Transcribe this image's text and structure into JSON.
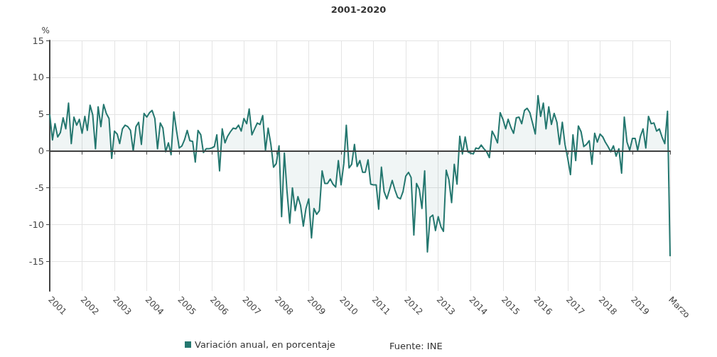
{
  "chart_data": {
    "type": "area",
    "title": "2001-2020",
    "ylabel": "%",
    "annotations": [
      "Fuente: INE"
    ],
    "x": [
      "2001-01",
      "2001-02",
      "2001-03",
      "2001-04",
      "2001-05",
      "2001-06",
      "2001-07",
      "2001-08",
      "2001-09",
      "2001-10",
      "2001-11",
      "2001-12",
      "2002-01",
      "2002-02",
      "2002-03",
      "2002-04",
      "2002-05",
      "2002-06",
      "2002-07",
      "2002-08",
      "2002-09",
      "2002-10",
      "2002-11",
      "2002-12",
      "2003-01",
      "2003-02",
      "2003-03",
      "2003-04",
      "2003-05",
      "2003-06",
      "2003-07",
      "2003-08",
      "2003-09",
      "2003-10",
      "2003-11",
      "2003-12",
      "2004-01",
      "2004-02",
      "2004-03",
      "2004-04",
      "2004-05",
      "2004-06",
      "2004-07",
      "2004-08",
      "2004-09",
      "2004-10",
      "2004-11",
      "2004-12",
      "2005-01",
      "2005-02",
      "2005-03",
      "2005-04",
      "2005-05",
      "2005-06",
      "2005-07",
      "2005-08",
      "2005-09",
      "2005-10",
      "2005-11",
      "2005-12",
      "2006-01",
      "2006-02",
      "2006-03",
      "2006-04",
      "2006-05",
      "2006-06",
      "2006-07",
      "2006-08",
      "2006-09",
      "2006-10",
      "2006-11",
      "2006-12",
      "2007-01",
      "2007-02",
      "2007-03",
      "2007-04",
      "2007-05",
      "2007-06",
      "2007-07",
      "2007-08",
      "2007-09",
      "2007-10",
      "2007-11",
      "2007-12",
      "2008-01",
      "2008-02",
      "2008-03",
      "2008-04",
      "2008-05",
      "2008-06",
      "2008-07",
      "2008-08",
      "2008-09",
      "2008-10",
      "2008-11",
      "2008-12",
      "2009-01",
      "2009-02",
      "2009-03",
      "2009-04",
      "2009-05",
      "2009-06",
      "2009-07",
      "2009-08",
      "2009-09",
      "2009-10",
      "2009-11",
      "2009-12",
      "2010-01",
      "2010-02",
      "2010-03",
      "2010-04",
      "2010-05",
      "2010-06",
      "2010-07",
      "2010-08",
      "2010-09",
      "2010-10",
      "2010-11",
      "2010-12",
      "2011-01",
      "2011-02",
      "2011-03",
      "2011-04",
      "2011-05",
      "2011-06",
      "2011-07",
      "2011-08",
      "2011-09",
      "2011-10",
      "2011-11",
      "2011-12",
      "2012-01",
      "2012-02",
      "2012-03",
      "2012-04",
      "2012-05",
      "2012-06",
      "2012-07",
      "2012-08",
      "2012-09",
      "2012-10",
      "2012-11",
      "2012-12",
      "2013-01",
      "2013-02",
      "2013-03",
      "2013-04",
      "2013-05",
      "2013-06",
      "2013-07",
      "2013-08",
      "2013-09",
      "2013-10",
      "2013-11",
      "2013-12",
      "2014-01",
      "2014-02",
      "2014-03",
      "2014-04",
      "2014-05",
      "2014-06",
      "2014-07",
      "2014-08",
      "2014-09",
      "2014-10",
      "2014-11",
      "2014-12",
      "2015-01",
      "2015-02",
      "2015-03",
      "2015-04",
      "2015-05",
      "2015-06",
      "2015-07",
      "2015-08",
      "2015-09",
      "2015-10",
      "2015-11",
      "2015-12",
      "2016-01",
      "2016-02",
      "2016-03",
      "2016-04",
      "2016-05",
      "2016-06",
      "2016-07",
      "2016-08",
      "2016-09",
      "2016-10",
      "2016-11",
      "2016-12",
      "2017-01",
      "2017-02",
      "2017-03",
      "2017-04",
      "2017-05",
      "2017-06",
      "2017-07",
      "2017-08",
      "2017-09",
      "2017-10",
      "2017-11",
      "2017-12",
      "2018-01",
      "2018-02",
      "2018-03",
      "2018-04",
      "2018-05",
      "2018-06",
      "2018-07",
      "2018-08",
      "2018-09",
      "2018-10",
      "2018-11",
      "2018-12",
      "2019-01",
      "2019-02",
      "2019-03",
      "2019-04",
      "2019-05",
      "2019-06",
      "2019-07",
      "2019-08",
      "2019-09",
      "2019-10",
      "2019-11",
      "2019-12",
      "2020-01",
      "2020-02",
      "2020-03"
    ],
    "series": [
      {
        "name": "Variación anual, en porcentaje",
        "color": "#24776f",
        "values": [
          4.9,
          1.5,
          3.7,
          1.9,
          2.5,
          4.5,
          3.0,
          6.5,
          1.0,
          4.6,
          3.5,
          4.3,
          2.4,
          4.7,
          2.8,
          6.2,
          4.9,
          0.3,
          6.0,
          3.3,
          6.3,
          5.1,
          4.4,
          -1.0,
          2.7,
          2.3,
          1.0,
          3.0,
          3.5,
          3.3,
          2.8,
          0,
          3.3,
          3.9,
          0.9,
          5.1,
          4.6,
          5.2,
          5.5,
          4.4,
          0.3,
          3.8,
          3.1,
          -0.1,
          1.1,
          -0.5,
          5.3,
          2.8,
          0.4,
          0.7,
          1.5,
          2.8,
          1.4,
          1.3,
          -1.5,
          2.8,
          2.2,
          -0.2,
          0.3,
          0.3,
          0.4,
          0.6,
          2.2,
          -2.7,
          3.0,
          1.1,
          2.0,
          2.6,
          3.1,
          3.0,
          3.5,
          2.7,
          4.4,
          3.7,
          5.7,
          2.2,
          3.0,
          3.8,
          3.6,
          4.8,
          0.1,
          3.1,
          0.9,
          -2.2,
          -1.7,
          0.7,
          -8.9,
          -0.3,
          -5.5,
          -9.8,
          -5.0,
          -8.1,
          -6.2,
          -7.4,
          -10.2,
          -7.8,
          -6.5,
          -11.8,
          -7.8,
          -8.6,
          -8.1,
          -2.7,
          -4.4,
          -4.4,
          -3.8,
          -4.5,
          -4.9,
          -1.3,
          -4.6,
          -1.7,
          3.5,
          -2.3,
          -1.8,
          0.9,
          -2.1,
          -1.3,
          -2.9,
          -2.9,
          -1.2,
          -4.5,
          -4.6,
          -4.6,
          -7.9,
          -2.2,
          -5.5,
          -6.5,
          -5.3,
          -4.0,
          -5.3,
          -6.3,
          -6.5,
          -5.5,
          -3.4,
          -2.9,
          -3.6,
          -11.4,
          -4.4,
          -5.2,
          -7.8,
          -2.7,
          -13.7,
          -9.0,
          -8.7,
          -10.8,
          -8.9,
          -10.3,
          -10.9,
          -2.6,
          -3.9,
          -7.0,
          -1.8,
          -4.5,
          2.0,
          -0.4,
          1.9,
          -0.1,
          -0.3,
          -0.4,
          0.4,
          0.3,
          0.8,
          0.3,
          -0.1,
          -0.9,
          2.7,
          2.0,
          1.1,
          5.2,
          4.3,
          3.0,
          4.3,
          3.2,
          2.4,
          4.5,
          4.6,
          3.7,
          5.5,
          5.8,
          5.2,
          3.8,
          2.3,
          7.5,
          4.7,
          6.5,
          3.0,
          6.0,
          3.6,
          5.1,
          3.9,
          0.9,
          3.9,
          0.9,
          -1.0,
          -3.2,
          2.2,
          -1.3,
          3.4,
          2.6,
          0.6,
          0.9,
          1.4,
          -1.8,
          2.4,
          1.2,
          2.3,
          1.9,
          1.2,
          0.6,
          -0.1,
          0.7,
          -0.7,
          0.3,
          -3.0,
          4.6,
          1.2,
          0.1,
          1.7,
          1.7,
          0.1,
          2.0,
          3.0,
          0.4,
          4.7,
          3.7,
          3.8,
          2.7,
          3.0,
          1.9,
          1.0,
          5.4,
          -14.2
        ]
      }
    ],
    "xlim": [
      "2001-01",
      "2020-03"
    ],
    "xticks": [
      {
        "value": "2001-01",
        "label": "2001"
      },
      {
        "value": "2002-01",
        "label": "2002"
      },
      {
        "value": "2003-01",
        "label": "2003"
      },
      {
        "value": "2004-01",
        "label": "2004"
      },
      {
        "value": "2005-01",
        "label": "2005"
      },
      {
        "value": "2006-01",
        "label": "2006"
      },
      {
        "value": "2007-01",
        "label": "2007"
      },
      {
        "value": "2008-01",
        "label": "2008"
      },
      {
        "value": "2009-01",
        "label": "2009"
      },
      {
        "value": "2010-01",
        "label": "2010"
      },
      {
        "value": "2011-01",
        "label": "2011"
      },
      {
        "value": "2012-01",
        "label": "2012"
      },
      {
        "value": "2013-01",
        "label": "2013"
      },
      {
        "value": "2014-01",
        "label": "2014"
      },
      {
        "value": "2015-01",
        "label": "2015"
      },
      {
        "value": "2016-01",
        "label": "2016"
      },
      {
        "value": "2017-01",
        "label": "2017"
      },
      {
        "value": "2018-01",
        "label": "2018"
      },
      {
        "value": "2019-01",
        "label": "2019"
      },
      {
        "value": "2020-03",
        "label": "Marzo"
      }
    ],
    "ylim": [
      -19,
      15
    ],
    "yticks": [
      -15,
      -10,
      -5,
      0,
      5,
      10,
      15
    ],
    "ref_lines": [
      {
        "axis": "y",
        "value": 0,
        "color": "#404040"
      }
    ],
    "grid": true,
    "legend": "bottom",
    "marker": "none",
    "line_style": "solid"
  }
}
